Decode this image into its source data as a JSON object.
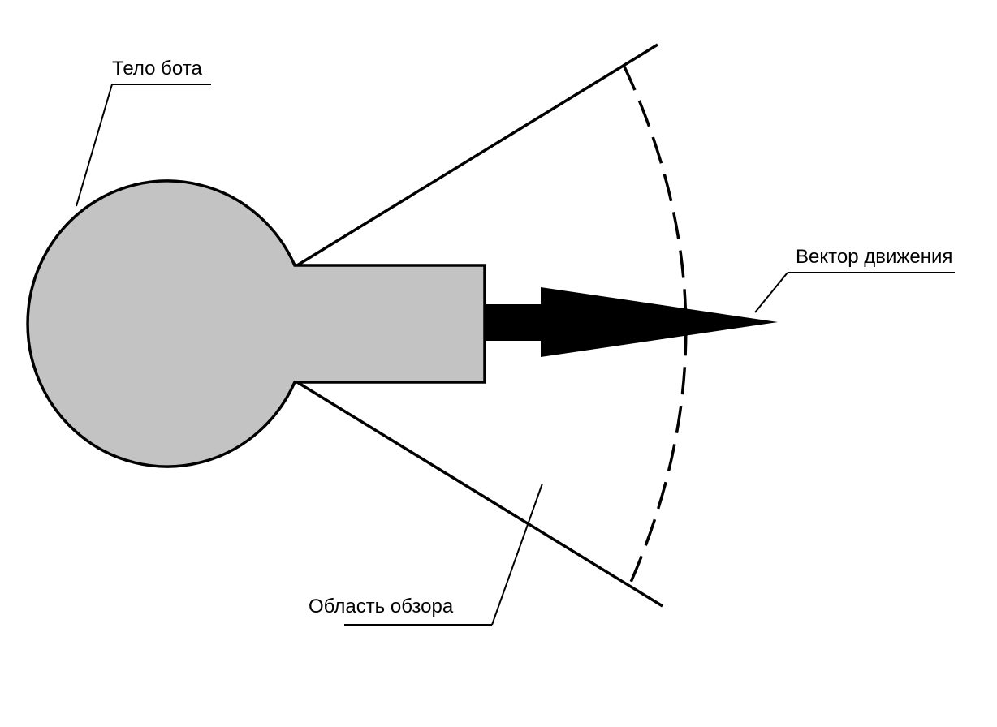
{
  "labels": {
    "body": "Тело бота",
    "vector": "Вектор движения",
    "view_area": "Область обзора"
  },
  "colors": {
    "background": "#ffffff",
    "body_fill": "#c3c3c3",
    "stroke": "#000000",
    "arrow": "#000000"
  }
}
